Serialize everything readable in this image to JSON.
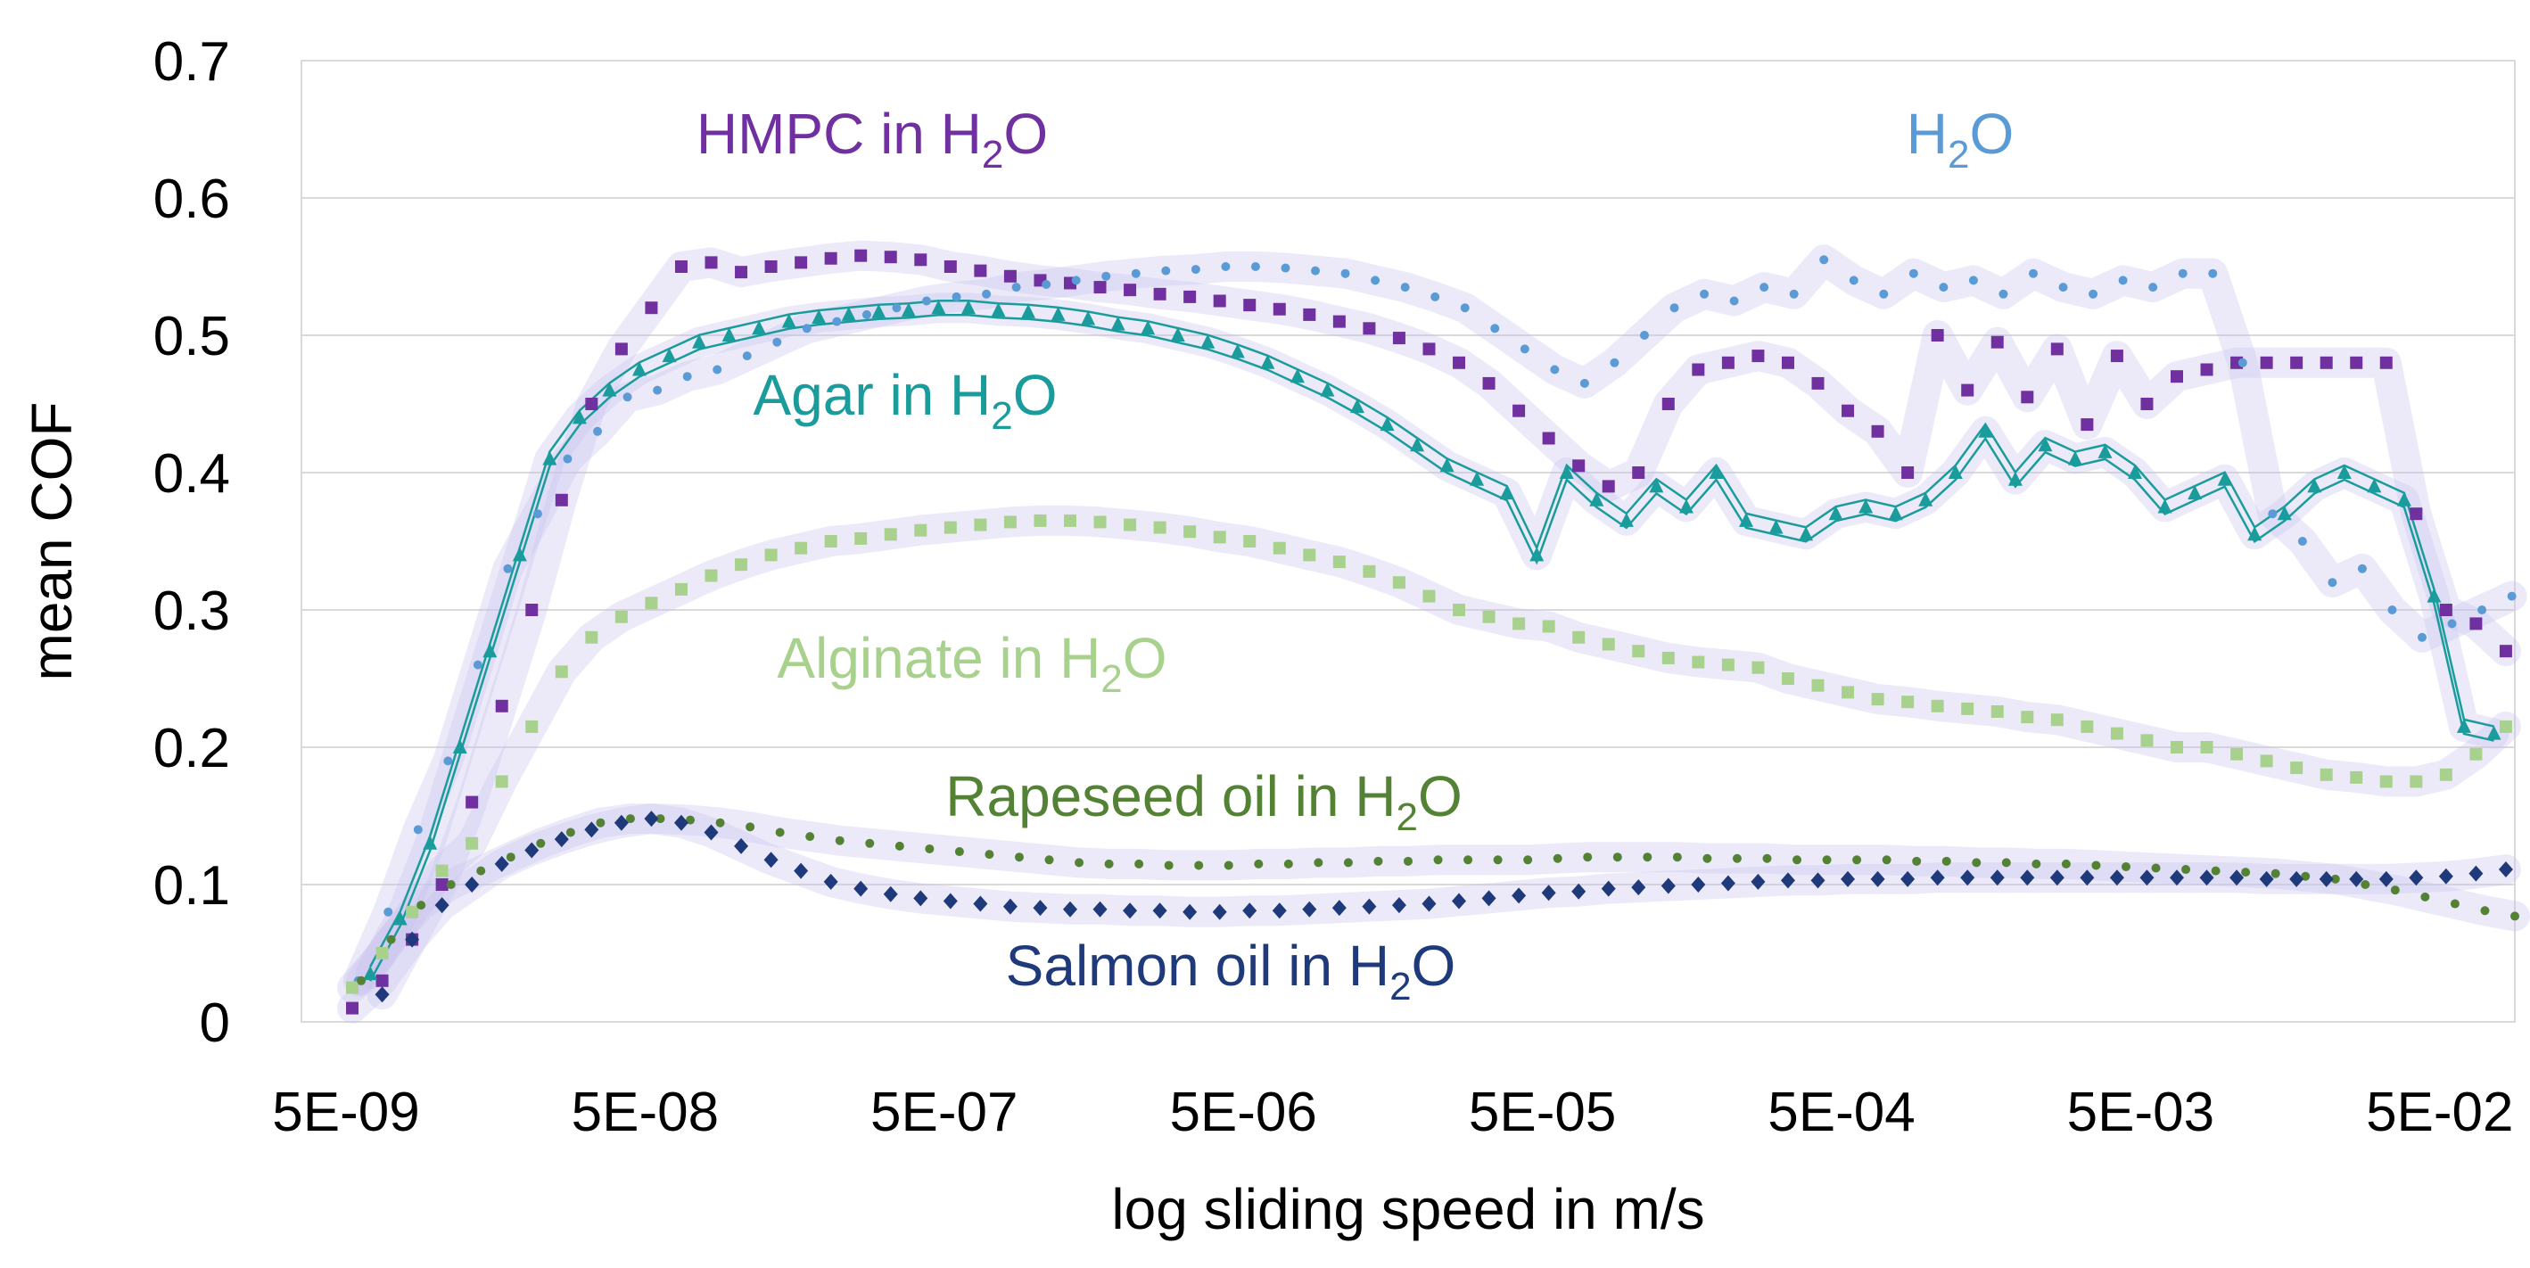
{
  "chart_data": {
    "type": "scatter",
    "title": "",
    "xlabel": "log sliding speed in m/s",
    "ylabel": "mean COF",
    "x_scale": "log",
    "xlim_log10": [
      -8.45,
      -1.05
    ],
    "ylim": [
      0,
      0.7
    ],
    "yticks": [
      {
        "value": 0,
        "label": "0"
      },
      {
        "value": 0.1,
        "label": "0.1"
      },
      {
        "value": 0.2,
        "label": "0.2"
      },
      {
        "value": 0.3,
        "label": "0.3"
      },
      {
        "value": 0.4,
        "label": "0.4"
      },
      {
        "value": 0.5,
        "label": "0.5"
      },
      {
        "value": 0.6,
        "label": "0.6"
      },
      {
        "value": 0.7,
        "label": "0.7"
      }
    ],
    "xticks": [
      {
        "value": 5e-09,
        "label": "5E-09"
      },
      {
        "value": 5e-08,
        "label": "5E-08"
      },
      {
        "value": 5e-07,
        "label": "5E-07"
      },
      {
        "value": 5e-06,
        "label": "5E-06"
      },
      {
        "value": 5e-05,
        "label": "5E-05"
      },
      {
        "value": 0.0005,
        "label": "5E-04"
      },
      {
        "value": 0.005,
        "label": "5E-03"
      },
      {
        "value": 0.05,
        "label": "5E-02"
      }
    ],
    "grid": "horizontal",
    "series": [
      {
        "name": "HMPC in H2O",
        "label_main": "HMPC in H",
        "label_sub": "2",
        "label_tail": "O",
        "color": "#7030a0",
        "marker": "square",
        "x_log10": [
          -8.28,
          -8.18,
          -8.08,
          -7.98,
          -7.88,
          -7.78,
          -7.68,
          -7.58,
          -7.48,
          -7.38,
          -7.28,
          -7.18,
          -7.08,
          -6.98,
          -6.88,
          -6.78,
          -6.68,
          -6.58,
          -6.48,
          -6.38,
          -6.28,
          -6.18,
          -6.08,
          -5.98,
          -5.88,
          -5.78,
          -5.68,
          -5.58,
          -5.48,
          -5.38,
          -5.28,
          -5.18,
          -5.08,
          -4.98,
          -4.88,
          -4.78,
          -4.68,
          -4.58,
          -4.48,
          -4.38,
          -4.28,
          -4.18,
          -4.08,
          -3.98,
          -3.88,
          -3.78,
          -3.68,
          -3.58,
          -3.48,
          -3.38,
          -3.28,
          -3.18,
          -3.08,
          -2.98,
          -2.88,
          -2.78,
          -2.68,
          -2.58,
          -2.48,
          -2.38,
          -2.28,
          -2.18,
          -2.08,
          -1.98,
          -1.88,
          -1.78,
          -1.68,
          -1.58,
          -1.48,
          -1.38,
          -1.28,
          -1.18,
          -1.08
        ],
        "values": [
          0.01,
          0.03,
          0.06,
          0.1,
          0.16,
          0.23,
          0.3,
          0.38,
          0.45,
          0.49,
          0.52,
          0.55,
          0.553,
          0.546,
          0.55,
          0.553,
          0.556,
          0.558,
          0.557,
          0.555,
          0.55,
          0.547,
          0.543,
          0.54,
          0.538,
          0.535,
          0.533,
          0.53,
          0.528,
          0.525,
          0.522,
          0.519,
          0.515,
          0.51,
          0.505,
          0.498,
          0.49,
          0.48,
          0.465,
          0.445,
          0.425,
          0.405,
          0.39,
          0.4,
          0.45,
          0.475,
          0.48,
          0.485,
          0.48,
          0.465,
          0.445,
          0.43,
          0.4,
          0.5,
          0.46,
          0.495,
          0.455,
          0.49,
          0.435,
          0.485,
          0.45,
          0.47,
          0.475,
          0.48,
          0.48,
          0.48,
          0.48,
          0.48,
          0.48,
          0.37,
          0.3,
          0.29,
          0.27
        ]
      },
      {
        "name": "H2O",
        "label_main": "H",
        "label_sub": "2",
        "label_tail": "O",
        "color": "#5b9bd5",
        "marker": "dot",
        "x_log10": [
          -8.26,
          -8.16,
          -8.06,
          -7.96,
          -7.86,
          -7.76,
          -7.66,
          -7.56,
          -7.46,
          -7.36,
          -7.26,
          -7.16,
          -7.06,
          -6.96,
          -6.86,
          -6.76,
          -6.66,
          -6.56,
          -6.46,
          -6.36,
          -6.26,
          -6.16,
          -6.06,
          -5.96,
          -5.86,
          -5.76,
          -5.66,
          -5.56,
          -5.46,
          -5.36,
          -5.26,
          -5.16,
          -5.06,
          -4.96,
          -4.86,
          -4.76,
          -4.66,
          -4.56,
          -4.46,
          -4.36,
          -4.26,
          -4.16,
          -4.06,
          -3.96,
          -3.86,
          -3.76,
          -3.66,
          -3.56,
          -3.46,
          -3.36,
          -3.26,
          -3.16,
          -3.06,
          -2.96,
          -2.86,
          -2.76,
          -2.66,
          -2.56,
          -2.46,
          -2.36,
          -2.26,
          -2.16,
          -2.06,
          -1.96,
          -1.86,
          -1.76,
          -1.66,
          -1.56,
          -1.46,
          -1.36,
          -1.26,
          -1.16,
          -1.06
        ],
        "values": [
          0.03,
          0.08,
          0.14,
          0.19,
          0.26,
          0.33,
          0.37,
          0.41,
          0.43,
          0.455,
          0.46,
          0.47,
          0.475,
          0.485,
          0.495,
          0.505,
          0.51,
          0.515,
          0.52,
          0.525,
          0.528,
          0.53,
          0.535,
          0.537,
          0.54,
          0.543,
          0.545,
          0.547,
          0.548,
          0.55,
          0.55,
          0.549,
          0.547,
          0.545,
          0.54,
          0.535,
          0.528,
          0.52,
          0.505,
          0.49,
          0.475,
          0.465,
          0.48,
          0.5,
          0.52,
          0.53,
          0.525,
          0.535,
          0.53,
          0.555,
          0.54,
          0.53,
          0.545,
          0.535,
          0.54,
          0.53,
          0.545,
          0.535,
          0.53,
          0.54,
          0.535,
          0.545,
          0.545,
          0.48,
          0.37,
          0.35,
          0.32,
          0.33,
          0.3,
          0.28,
          0.29,
          0.3,
          0.31
        ]
      },
      {
        "name": "Agar in H2O",
        "label_main": "Agar in H",
        "label_sub": "2",
        "label_tail": "O",
        "color": "#1a9c9c",
        "marker": "triangle",
        "x_log10": [
          -8.22,
          -8.12,
          -8.02,
          -7.92,
          -7.82,
          -7.72,
          -7.62,
          -7.52,
          -7.42,
          -7.32,
          -7.22,
          -7.12,
          -7.02,
          -6.92,
          -6.82,
          -6.72,
          -6.62,
          -6.52,
          -6.42,
          -6.32,
          -6.22,
          -6.12,
          -6.02,
          -5.92,
          -5.82,
          -5.72,
          -5.62,
          -5.52,
          -5.42,
          -5.32,
          -5.22,
          -5.12,
          -5.02,
          -4.92,
          -4.82,
          -4.72,
          -4.62,
          -4.52,
          -4.42,
          -4.32,
          -4.22,
          -4.12,
          -4.02,
          -3.92,
          -3.82,
          -3.72,
          -3.62,
          -3.52,
          -3.42,
          -3.32,
          -3.22,
          -3.12,
          -3.02,
          -2.92,
          -2.82,
          -2.72,
          -2.62,
          -2.52,
          -2.42,
          -2.32,
          -2.22,
          -2.12,
          -2.02,
          -1.92,
          -1.82,
          -1.72,
          -1.62,
          -1.52,
          -1.42,
          -1.32,
          -1.22,
          -1.12
        ],
        "values": [
          0.035,
          0.075,
          0.13,
          0.2,
          0.27,
          0.34,
          0.41,
          0.44,
          0.46,
          0.475,
          0.485,
          0.495,
          0.5,
          0.505,
          0.51,
          0.513,
          0.515,
          0.517,
          0.518,
          0.52,
          0.52,
          0.518,
          0.517,
          0.515,
          0.512,
          0.508,
          0.505,
          0.5,
          0.495,
          0.488,
          0.48,
          0.47,
          0.46,
          0.448,
          0.435,
          0.42,
          0.405,
          0.395,
          0.385,
          0.34,
          0.4,
          0.38,
          0.365,
          0.39,
          0.375,
          0.4,
          0.365,
          0.36,
          0.355,
          0.37,
          0.375,
          0.37,
          0.38,
          0.4,
          0.43,
          0.395,
          0.42,
          0.41,
          0.415,
          0.4,
          0.375,
          0.385,
          0.395,
          0.355,
          0.37,
          0.39,
          0.4,
          0.39,
          0.38,
          0.31,
          0.215,
          0.21
        ]
      },
      {
        "name": "Alginate in H2O",
        "label_main": "Alginate in H",
        "label_sub": "2",
        "label_tail": "O",
        "color": "#a9d18e",
        "marker": "square",
        "x_log10": [
          -8.28,
          -8.18,
          -8.08,
          -7.98,
          -7.88,
          -7.78,
          -7.68,
          -7.58,
          -7.48,
          -7.38,
          -7.28,
          -7.18,
          -7.08,
          -6.98,
          -6.88,
          -6.78,
          -6.68,
          -6.58,
          -6.48,
          -6.38,
          -6.28,
          -6.18,
          -6.08,
          -5.98,
          -5.88,
          -5.78,
          -5.68,
          -5.58,
          -5.48,
          -5.38,
          -5.28,
          -5.18,
          -5.08,
          -4.98,
          -4.88,
          -4.78,
          -4.68,
          -4.58,
          -4.48,
          -4.38,
          -4.28,
          -4.18,
          -4.08,
          -3.98,
          -3.88,
          -3.78,
          -3.68,
          -3.58,
          -3.48,
          -3.38,
          -3.28,
          -3.18,
          -3.08,
          -2.98,
          -2.88,
          -2.78,
          -2.68,
          -2.58,
          -2.48,
          -2.38,
          -2.28,
          -2.18,
          -2.08,
          -1.98,
          -1.88,
          -1.78,
          -1.68,
          -1.58,
          -1.48,
          -1.38,
          -1.28,
          -1.18,
          -1.08
        ],
        "values": [
          0.025,
          0.05,
          0.08,
          0.11,
          0.13,
          0.175,
          0.215,
          0.255,
          0.28,
          0.295,
          0.305,
          0.315,
          0.325,
          0.333,
          0.34,
          0.345,
          0.35,
          0.352,
          0.355,
          0.358,
          0.36,
          0.362,
          0.364,
          0.365,
          0.365,
          0.364,
          0.362,
          0.36,
          0.357,
          0.353,
          0.35,
          0.345,
          0.34,
          0.335,
          0.328,
          0.32,
          0.31,
          0.3,
          0.295,
          0.29,
          0.288,
          0.28,
          0.275,
          0.27,
          0.265,
          0.262,
          0.26,
          0.258,
          0.25,
          0.245,
          0.24,
          0.235,
          0.233,
          0.23,
          0.228,
          0.226,
          0.222,
          0.22,
          0.215,
          0.21,
          0.205,
          0.2,
          0.2,
          0.195,
          0.19,
          0.185,
          0.18,
          0.178,
          0.175,
          0.175,
          0.18,
          0.195,
          0.215
        ]
      },
      {
        "name": "Rapeseed oil in H2O",
        "label_main": "Rapeseed oil in H",
        "label_sub": "2",
        "label_tail": "O",
        "color": "#548235",
        "marker": "dot",
        "x_log10": [
          -8.25,
          -8.15,
          -8.05,
          -7.95,
          -7.85,
          -7.75,
          -7.65,
          -7.55,
          -7.45,
          -7.35,
          -7.25,
          -7.15,
          -7.05,
          -6.95,
          -6.85,
          -6.75,
          -6.65,
          -6.55,
          -6.45,
          -6.35,
          -6.25,
          -6.15,
          -6.05,
          -5.95,
          -5.85,
          -5.75,
          -5.65,
          -5.55,
          -5.45,
          -5.35,
          -5.25,
          -5.15,
          -5.05,
          -4.95,
          -4.85,
          -4.75,
          -4.65,
          -4.55,
          -4.45,
          -4.35,
          -4.25,
          -4.15,
          -4.05,
          -3.95,
          -3.85,
          -3.75,
          -3.65,
          -3.55,
          -3.45,
          -3.35,
          -3.25,
          -3.15,
          -3.05,
          -2.95,
          -2.85,
          -2.75,
          -2.65,
          -2.55,
          -2.45,
          -2.35,
          -2.25,
          -2.15,
          -2.05,
          -1.95,
          -1.85,
          -1.75,
          -1.65,
          -1.55,
          -1.45,
          -1.35,
          -1.25,
          -1.15,
          -1.05
        ],
        "values": [
          0.03,
          0.06,
          0.085,
          0.1,
          0.11,
          0.12,
          0.13,
          0.138,
          0.145,
          0.148,
          0.148,
          0.147,
          0.145,
          0.142,
          0.138,
          0.135,
          0.132,
          0.13,
          0.128,
          0.126,
          0.124,
          0.122,
          0.12,
          0.118,
          0.116,
          0.115,
          0.115,
          0.114,
          0.114,
          0.114,
          0.115,
          0.115,
          0.116,
          0.116,
          0.117,
          0.117,
          0.118,
          0.118,
          0.118,
          0.118,
          0.119,
          0.12,
          0.12,
          0.12,
          0.12,
          0.119,
          0.119,
          0.119,
          0.118,
          0.118,
          0.118,
          0.118,
          0.117,
          0.117,
          0.116,
          0.116,
          0.115,
          0.115,
          0.114,
          0.113,
          0.112,
          0.111,
          0.11,
          0.109,
          0.108,
          0.106,
          0.104,
          0.1,
          0.096,
          0.091,
          0.086,
          0.081,
          0.077
        ]
      },
      {
        "name": "Salmon oil in H2O",
        "label_main": "Salmon oil in H",
        "label_sub": "2",
        "label_tail": "O",
        "color": "#1f3a7a",
        "marker": "diamond",
        "x_log10": [
          -8.18,
          -8.08,
          -7.98,
          -7.88,
          -7.78,
          -7.68,
          -7.58,
          -7.48,
          -7.38,
          -7.28,
          -7.18,
          -7.08,
          -6.98,
          -6.88,
          -6.78,
          -6.68,
          -6.58,
          -6.48,
          -6.38,
          -6.28,
          -6.18,
          -6.08,
          -5.98,
          -5.88,
          -5.78,
          -5.68,
          -5.58,
          -5.48,
          -5.38,
          -5.28,
          -5.18,
          -5.08,
          -4.98,
          -4.88,
          -4.78,
          -4.68,
          -4.58,
          -4.48,
          -4.38,
          -4.28,
          -4.18,
          -4.08,
          -3.98,
          -3.88,
          -3.78,
          -3.68,
          -3.58,
          -3.48,
          -3.38,
          -3.28,
          -3.18,
          -3.08,
          -2.98,
          -2.88,
          -2.78,
          -2.68,
          -2.58,
          -2.48,
          -2.38,
          -2.28,
          -2.18,
          -2.08,
          -1.98,
          -1.88,
          -1.78,
          -1.68,
          -1.58,
          -1.48,
          -1.38,
          -1.28,
          -1.18,
          -1.08
        ],
        "values": [
          0.02,
          0.06,
          0.085,
          0.1,
          0.115,
          0.125,
          0.133,
          0.14,
          0.145,
          0.148,
          0.145,
          0.138,
          0.128,
          0.118,
          0.11,
          0.102,
          0.097,
          0.093,
          0.09,
          0.088,
          0.086,
          0.084,
          0.083,
          0.082,
          0.082,
          0.081,
          0.081,
          0.08,
          0.08,
          0.081,
          0.081,
          0.082,
          0.083,
          0.084,
          0.085,
          0.086,
          0.088,
          0.09,
          0.092,
          0.094,
          0.095,
          0.097,
          0.098,
          0.099,
          0.1,
          0.101,
          0.102,
          0.103,
          0.103,
          0.104,
          0.104,
          0.104,
          0.105,
          0.105,
          0.105,
          0.105,
          0.105,
          0.105,
          0.105,
          0.105,
          0.105,
          0.105,
          0.105,
          0.104,
          0.104,
          0.104,
          0.104,
          0.104,
          0.105,
          0.106,
          0.108,
          0.111
        ]
      }
    ]
  }
}
